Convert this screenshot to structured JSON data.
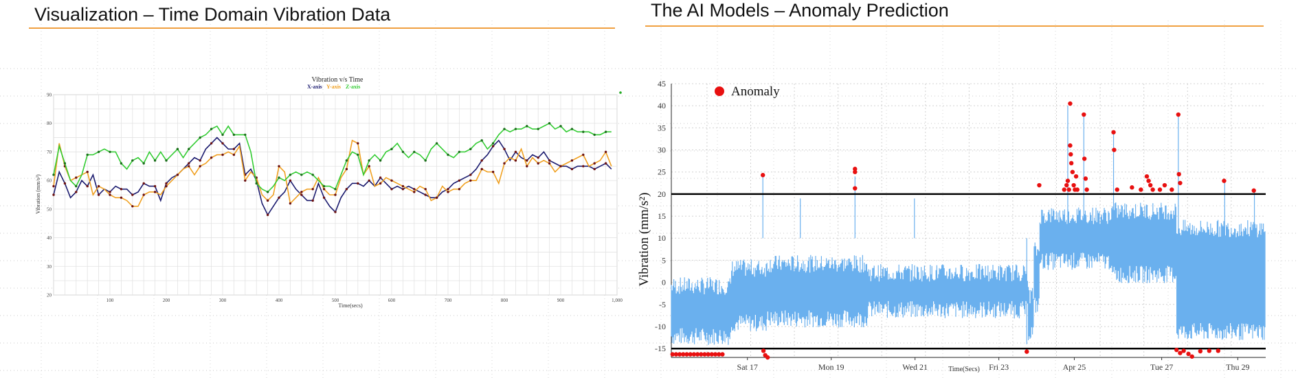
{
  "slide": {
    "left_title": "Visualization – Time Domain Vibration Data",
    "right_title": "The AI Models – Anomaly Prediction"
  },
  "colors": {
    "accent_rule": "#f0a040",
    "x_axis": "#1a1a6e",
    "y_axis": "#f0a020",
    "z_axis": "#33cc33",
    "marker": "#6b1010",
    "signal": "#6ab0ee",
    "anomaly": "#e81010",
    "threshold": "#000000"
  },
  "chart_data": [
    {
      "type": "line",
      "title": "Vibration v/s Time",
      "xlabel": "Time(secs)",
      "ylabel": "Vibration (mm/s²)",
      "xlim": [
        0,
        1000
      ],
      "ylim": [
        20,
        90
      ],
      "x_ticks": [
        "100",
        "200",
        "300",
        "400",
        "500",
        "600",
        "700",
        "800",
        "900",
        "1,000"
      ],
      "y_ticks": [
        "20",
        "30",
        "40",
        "50",
        "60",
        "70",
        "80",
        "90"
      ],
      "grid": true,
      "legend": "top-center",
      "x": [
        0,
        10,
        20,
        30,
        40,
        50,
        60,
        70,
        80,
        90,
        100,
        110,
        120,
        130,
        140,
        150,
        160,
        170,
        180,
        190,
        200,
        210,
        220,
        230,
        240,
        250,
        260,
        270,
        280,
        290,
        300,
        310,
        320,
        330,
        340,
        350,
        360,
        370,
        380,
        390,
        400,
        410,
        420,
        430,
        440,
        450,
        460,
        470,
        480,
        490,
        500,
        510,
        520,
        530,
        540,
        550,
        560,
        570,
        580,
        590,
        600,
        610,
        620,
        630,
        640,
        650,
        660,
        670,
        680,
        690,
        700,
        710,
        720,
        730,
        740,
        750,
        760,
        770,
        780,
        790,
        800,
        810,
        820,
        830,
        840,
        850,
        860,
        870,
        880,
        890,
        900,
        910,
        920,
        930,
        940,
        950,
        960,
        970,
        980,
        990
      ],
      "series": [
        {
          "name": "X-axis",
          "values": [
            55,
            63,
            59,
            54,
            56,
            60,
            58,
            62,
            55,
            57,
            56,
            58,
            57,
            57,
            55,
            56,
            59,
            58,
            58,
            53,
            59,
            61,
            62,
            64,
            66,
            68,
            67,
            71,
            73,
            75,
            73,
            71,
            71,
            73,
            62,
            64,
            60,
            52,
            48,
            51,
            54,
            56,
            60,
            57,
            55,
            53,
            53,
            59,
            54,
            51,
            49,
            54,
            57,
            59,
            59,
            58,
            60,
            58,
            61,
            59,
            57,
            58,
            57,
            58,
            57,
            56,
            55,
            54,
            54,
            56,
            57,
            59,
            60,
            61,
            62,
            64,
            67,
            69,
            72,
            74,
            71,
            67,
            70,
            68,
            67,
            69,
            68,
            70,
            67,
            66,
            65,
            65,
            64,
            65,
            65,
            65,
            64,
            65,
            66,
            64
          ]
        },
        {
          "name": "Y-axis",
          "values": [
            58,
            73,
            65,
            60,
            61,
            62,
            63,
            55,
            58,
            57,
            55,
            54,
            54,
            53,
            51,
            51,
            55,
            56,
            56,
            55,
            58,
            60,
            62,
            64,
            65,
            62,
            65,
            66,
            68,
            69,
            69,
            70,
            69,
            72,
            60,
            63,
            61,
            55,
            53,
            55,
            65,
            63,
            52,
            54,
            56,
            57,
            57,
            61,
            57,
            55,
            55,
            61,
            64,
            74,
            73,
            62,
            65,
            58,
            59,
            61,
            60,
            59,
            58,
            57,
            56,
            58,
            57,
            53,
            54,
            58,
            56,
            57,
            57,
            59,
            60,
            60,
            64,
            63,
            63,
            59,
            66,
            68,
            67,
            71,
            65,
            68,
            66,
            67,
            66,
            63,
            65,
            66,
            67,
            68,
            69,
            65,
            66,
            67,
            70,
            65
          ]
        },
        {
          "name": "Z-axis",
          "values": [
            62,
            72,
            66,
            60,
            58,
            62,
            69,
            69,
            70,
            71,
            70,
            70,
            66,
            64,
            67,
            68,
            66,
            70,
            67,
            70,
            67,
            69,
            71,
            68,
            71,
            73,
            75,
            76,
            78,
            79,
            76,
            79,
            76,
            76,
            76,
            70,
            59,
            57,
            56,
            58,
            61,
            60,
            62,
            63,
            62,
            63,
            62,
            60,
            58,
            58,
            57,
            62,
            67,
            70,
            69,
            62,
            67,
            69,
            67,
            70,
            71,
            73,
            70,
            68,
            70,
            69,
            67,
            71,
            73,
            71,
            69,
            68,
            70,
            70,
            71,
            73,
            74,
            71,
            73,
            76,
            78,
            77,
            78,
            78,
            79,
            78,
            78,
            79,
            80,
            78,
            79,
            77,
            78,
            77,
            77,
            77,
            76,
            76,
            77,
            77
          ]
        }
      ]
    },
    {
      "type": "line",
      "title": "",
      "xlabel": "Time(Secs)",
      "ylabel": "Vibration (mm/s²)",
      "ylim": [
        -17,
        45
      ],
      "y_ticks": [
        "-15",
        "-10",
        "-5",
        "0",
        "5",
        "10",
        "15",
        "20",
        "25",
        "30",
        "35",
        "40",
        "45"
      ],
      "x_ticks": [
        "Sat 17",
        "Mon 19",
        "Wed 21",
        "Fri 23",
        "Apr 25",
        "Tue 27",
        "Thu 29"
      ],
      "grid": true,
      "legend": "top-left",
      "thresholds": [
        20,
        -15
      ],
      "series": [
        {
          "name": "Anomaly"
        }
      ]
    }
  ]
}
